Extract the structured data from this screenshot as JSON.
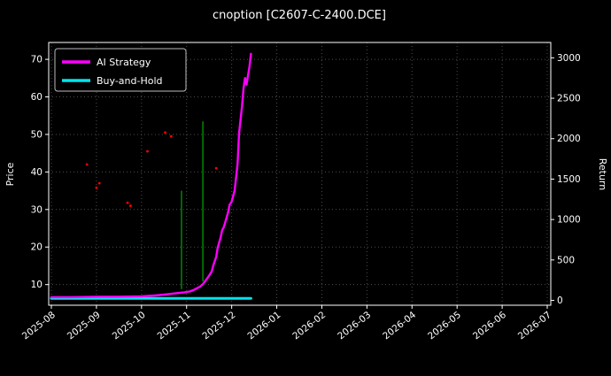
{
  "page": {
    "title": "cnoption [C2607-C-2400.DCE]"
  },
  "chart_data": {
    "type": "line",
    "title": "cnoption [C2607-C-2400.DCE]",
    "background": "#000000",
    "grid": true,
    "legend_position": "upper-left",
    "x_tick_labels": [
      "2025-08",
      "2025-09",
      "2025-10",
      "2025-11",
      "2025-12",
      "2026-01",
      "2026-02",
      "2026-03",
      "2026-04",
      "2026-05",
      "2026-06",
      "2026-07"
    ],
    "left_axis": {
      "label": "Price",
      "ticks": [
        10,
        20,
        30,
        40,
        50,
        60,
        70
      ],
      "range": [
        4.5,
        74.5
      ]
    },
    "right_axis": {
      "label": "Return",
      "ticks": [
        0,
        500,
        1000,
        1500,
        2000,
        2500,
        3000
      ],
      "range": [
        -60,
        3190
      ]
    },
    "legend": [
      {
        "label": "AI Strategy",
        "color": "#ff00ff"
      },
      {
        "label": "Buy-and-Hold",
        "color": "#00e5ee"
      }
    ],
    "series": [
      {
        "name": "AI Strategy",
        "axis": "right",
        "color": "#ff00ff",
        "width": 2.4,
        "points": [
          [
            "2025-08-01",
            40
          ],
          [
            "2025-08-15",
            40
          ],
          [
            "2025-09-01",
            45
          ],
          [
            "2025-09-15",
            45
          ],
          [
            "2025-10-01",
            50
          ],
          [
            "2025-10-10",
            60
          ],
          [
            "2025-10-18",
            75
          ],
          [
            "2025-10-25",
            90
          ],
          [
            "2025-10-30",
            100
          ],
          [
            "2025-11-03",
            110
          ],
          [
            "2025-11-06",
            130
          ],
          [
            "2025-11-08",
            150
          ],
          [
            "2025-11-10",
            170
          ],
          [
            "2025-11-12",
            200
          ],
          [
            "2025-11-14",
            250
          ],
          [
            "2025-11-16",
            300
          ],
          [
            "2025-11-18",
            360
          ],
          [
            "2025-11-19",
            430
          ],
          [
            "2025-11-21",
            540
          ],
          [
            "2025-11-22",
            650
          ],
          [
            "2025-11-24",
            780
          ],
          [
            "2025-11-25",
            870
          ],
          [
            "2025-11-26",
            900
          ],
          [
            "2025-11-27",
            960
          ],
          [
            "2025-11-29",
            1090
          ],
          [
            "2025-11-30",
            1180
          ],
          [
            "2025-12-01",
            1220
          ],
          [
            "2025-12-02",
            1290
          ],
          [
            "2025-12-03",
            1360
          ],
          [
            "2025-12-05",
            1690
          ],
          [
            "2025-12-06",
            2070
          ],
          [
            "2025-12-08",
            2400
          ],
          [
            "2025-12-09",
            2620
          ],
          [
            "2025-12-10",
            2750
          ],
          [
            "2025-12-11",
            2670
          ],
          [
            "2025-12-13",
            2890
          ],
          [
            "2025-12-14",
            3050
          ]
        ]
      },
      {
        "name": "Buy-and-Hold",
        "axis": "right",
        "color": "#00e5ee",
        "width": 3,
        "points": [
          [
            "2025-08-01",
            25
          ],
          [
            "2025-12-14",
            25
          ]
        ]
      }
    ],
    "event_lines": [
      {
        "date": "2025-10-28",
        "from_price": 8.8,
        "to_price": 35.0,
        "color": "#008000",
        "width": 1.6
      },
      {
        "date": "2025-11-12",
        "from_price": 10.9,
        "to_price": 53.5,
        "color": "#008000",
        "width": 1.6
      }
    ],
    "scatter": {
      "name": "price-dots",
      "color": "#ff0000",
      "radius": 1.4,
      "points": [
        [
          "2025-08-25",
          42.0
        ],
        [
          "2025-09-01",
          35.8
        ],
        [
          "2025-09-03",
          37.0
        ],
        [
          "2025-09-22",
          31.8
        ],
        [
          "2025-09-24",
          31.0
        ],
        [
          "2025-10-05",
          45.5
        ],
        [
          "2025-10-17",
          50.5
        ],
        [
          "2025-10-21",
          49.5
        ],
        [
          "2025-11-21",
          41.0
        ]
      ]
    }
  }
}
